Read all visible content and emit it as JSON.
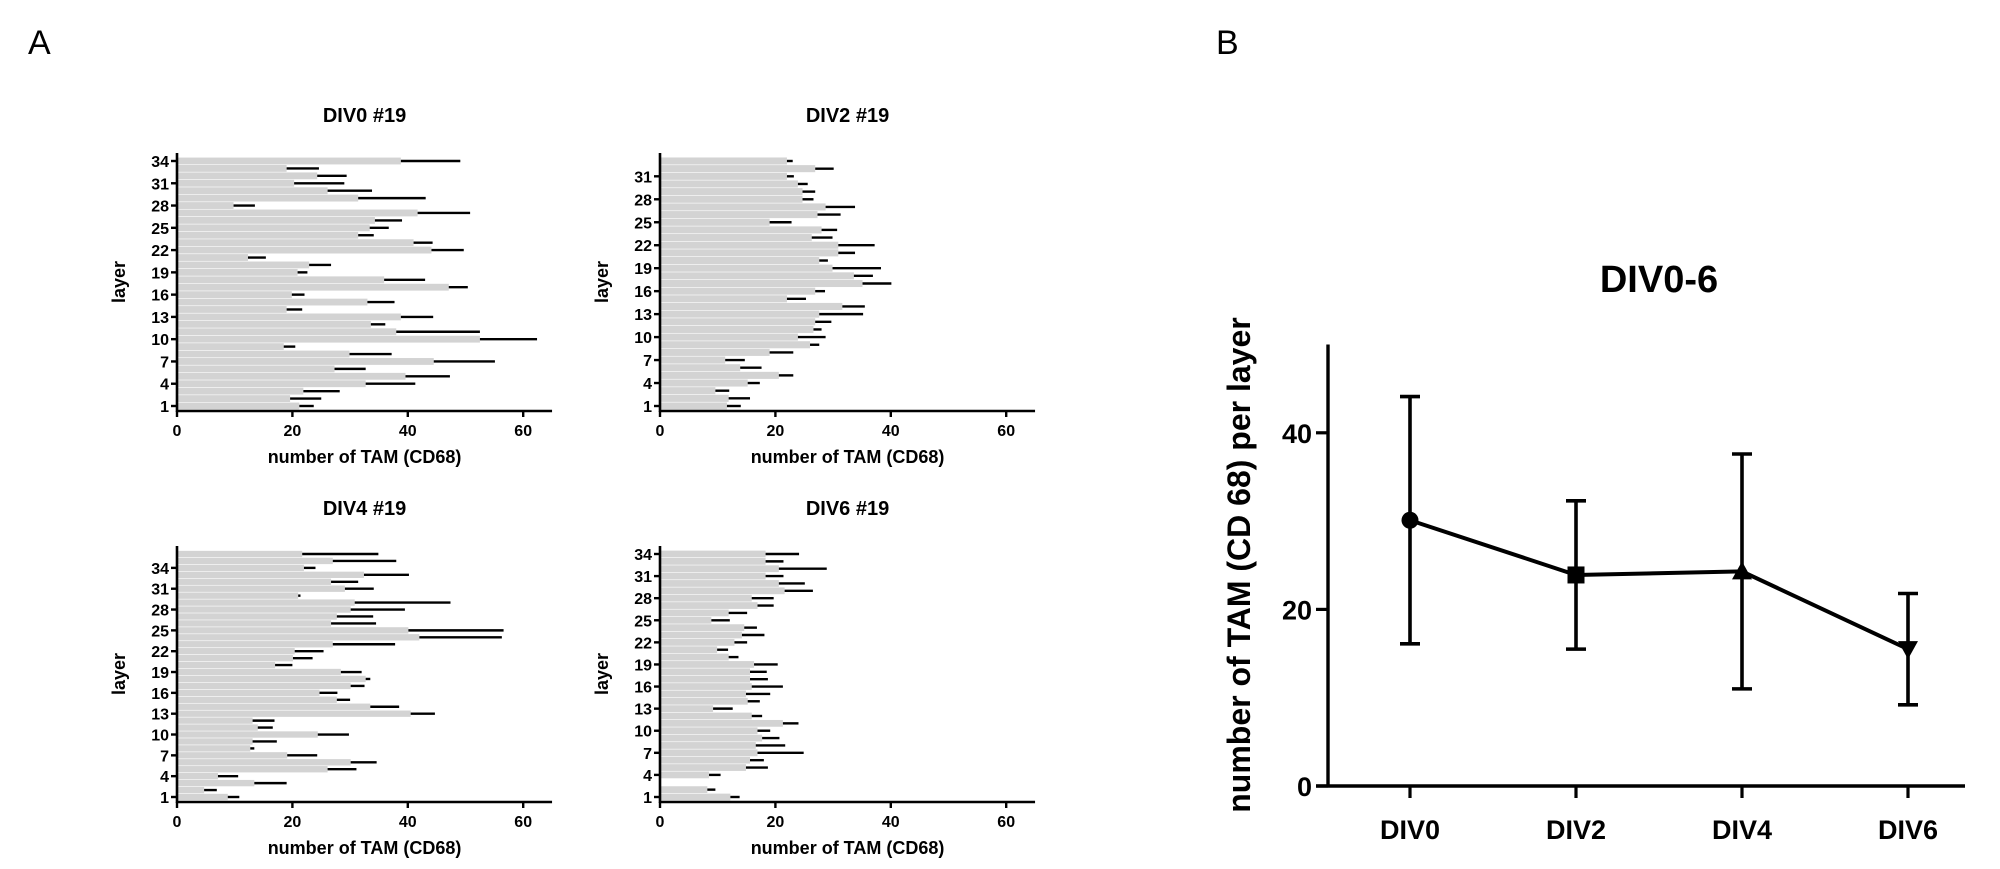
{
  "panel_labels": {
    "a": "A",
    "b": "B"
  },
  "colors": {
    "bar": "#d3d3d3",
    "ink": "#000000"
  },
  "chart_data": [
    {
      "type": "bar",
      "orientation": "horizontal",
      "title": "DIV0 #19",
      "xlabel": "number of TAM (CD68)",
      "ylabel": "layer",
      "xlim": [
        0,
        65
      ],
      "xticks": [
        0,
        20,
        40,
        60
      ],
      "yticks": [
        1,
        4,
        7,
        10,
        13,
        16,
        19,
        22,
        25,
        28,
        31,
        34
      ],
      "error_bars": "one-sided (right)",
      "layers": [
        1,
        2,
        3,
        4,
        5,
        6,
        7,
        8,
        9,
        10,
        11,
        12,
        13,
        14,
        15,
        16,
        17,
        18,
        19,
        20,
        21,
        22,
        23,
        24,
        25,
        26,
        27,
        28,
        29,
        30,
        31,
        32,
        33,
        34
      ],
      "mean": [
        21.2,
        19.6,
        21.9,
        32.7,
        39.6,
        27.3,
        44.5,
        29.9,
        18.5,
        52.5,
        38.0,
        33.6,
        38.8,
        19.0,
        33.0,
        19.9,
        47.1,
        35.9,
        20.9,
        22.9,
        12.3,
        44.1,
        41.0,
        31.4,
        33.4,
        34.3,
        41.7,
        9.8,
        31.4,
        26.1,
        20.3,
        24.3,
        19.0,
        38.8
      ],
      "sd": [
        2.5,
        5.4,
        6.3,
        8.6,
        7.7,
        5.4,
        10.6,
        7.3,
        2.0,
        9.9,
        14.5,
        2.5,
        5.6,
        2.7,
        4.7,
        2.2,
        3.3,
        7.1,
        1.7,
        3.8,
        3.1,
        5.6,
        3.3,
        2.7,
        3.3,
        4.7,
        9.1,
        3.7,
        11.7,
        7.7,
        8.7,
        5.1,
        5.6,
        10.3
      ]
    },
    {
      "type": "bar",
      "orientation": "horizontal",
      "title": "DIV2 #19",
      "xlabel": "number of TAM (CD68)",
      "ylabel": "layer",
      "xlim": [
        0,
        65
      ],
      "xticks": [
        0,
        20,
        40,
        60
      ],
      "yticks": [
        1,
        4,
        7,
        10,
        13,
        16,
        19,
        22,
        25,
        28,
        31
      ],
      "error_bars": "one-sided (right)",
      "layers": [
        1,
        2,
        3,
        4,
        5,
        6,
        7,
        8,
        9,
        10,
        11,
        12,
        13,
        14,
        15,
        16,
        17,
        18,
        19,
        20,
        21,
        22,
        23,
        24,
        25,
        26,
        27,
        28,
        29,
        30,
        31,
        32,
        33
      ],
      "mean": [
        11.6,
        11.9,
        9.6,
        15.2,
        20.6,
        13.9,
        11.3,
        19.0,
        26.0,
        23.9,
        26.6,
        26.9,
        27.6,
        31.6,
        22.0,
        26.9,
        35.1,
        33.6,
        29.9,
        27.6,
        30.9,
        30.9,
        26.3,
        28.0,
        19.0,
        27.3,
        28.7,
        24.7,
        24.7,
        23.9,
        22.0,
        26.9,
        22.0
      ],
      "sd": [
        2.4,
        3.7,
        2.4,
        2.1,
        2.5,
        3.7,
        3.4,
        4.1,
        1.6,
        4.8,
        1.4,
        2.8,
        7.6,
        3.9,
        3.3,
        1.7,
        5.0,
        3.3,
        8.4,
        1.5,
        2.9,
        6.3,
        3.6,
        2.7,
        3.8,
        4.0,
        5.1,
        1.9,
        2.2,
        1.7,
        1.2,
        3.2,
        1.0
      ]
    },
    {
      "type": "bar",
      "orientation": "horizontal",
      "title": "DIV4 #19",
      "xlabel": "number of TAM (CD68)",
      "ylabel": "layer",
      "xlim": [
        0,
        65
      ],
      "xticks": [
        0,
        20,
        40,
        60
      ],
      "yticks": [
        1,
        4,
        7,
        10,
        13,
        16,
        19,
        22,
        25,
        28,
        31,
        34
      ],
      "error_bars": "one-sided (right)",
      "layers": [
        1,
        2,
        3,
        4,
        5,
        6,
        7,
        8,
        9,
        10,
        11,
        12,
        13,
        14,
        15,
        16,
        17,
        18,
        19,
        20,
        21,
        22,
        23,
        24,
        25,
        26,
        27,
        28,
        29,
        30,
        31,
        32,
        33,
        34,
        35,
        36
      ],
      "mean": [
        8.8,
        4.7,
        13.4,
        7.1,
        26.1,
        30.1,
        19.1,
        12.7,
        13.1,
        24.4,
        14.0,
        13.1,
        40.5,
        33.5,
        27.7,
        24.7,
        30.1,
        32.7,
        28.4,
        17.0,
        20.1,
        20.4,
        27.0,
        42.0,
        40.1,
        26.7,
        27.7,
        30.1,
        30.8,
        21.0,
        29.1,
        26.7,
        32.4,
        22.0,
        27.0,
        21.7
      ],
      "sd": [
        2.0,
        2.2,
        5.6,
        3.5,
        5.0,
        4.5,
        5.2,
        0.7,
        4.2,
        5.4,
        2.6,
        3.8,
        4.2,
        5.0,
        2.3,
        3.1,
        2.4,
        0.8,
        3.6,
        3.0,
        3.4,
        5.0,
        10.8,
        14.3,
        16.5,
        7.8,
        6.3,
        9.4,
        16.6,
        0.4,
        5.0,
        4.7,
        7.8,
        2.0,
        11.0,
        13.2
      ]
    },
    {
      "type": "bar",
      "orientation": "horizontal",
      "title": "DIV6 #19",
      "xlabel": "number of TAM (CD68)",
      "ylabel": "layer",
      "xlim": [
        0,
        65
      ],
      "xticks": [
        0,
        20,
        40,
        60
      ],
      "yticks": [
        1,
        4,
        7,
        10,
        13,
        16,
        19,
        22,
        25,
        28,
        31,
        34
      ],
      "error_bars": "one-sided (right)",
      "layers": [
        1,
        2,
        3,
        4,
        5,
        6,
        7,
        8,
        9,
        10,
        11,
        12,
        13,
        14,
        15,
        16,
        17,
        18,
        19,
        20,
        21,
        22,
        23,
        24,
        25,
        26,
        27,
        28,
        29,
        30,
        31,
        32,
        33,
        34
      ],
      "mean": [
        12.2,
        8.2,
        0,
        8.5,
        14.9,
        15.6,
        16.9,
        16.6,
        17.7,
        16.9,
        21.3,
        15.9,
        9.2,
        15.2,
        14.9,
        15.9,
        15.6,
        15.6,
        16.3,
        11.9,
        9.9,
        12.9,
        14.2,
        14.6,
        8.9,
        11.9,
        16.9,
        15.9,
        21.6,
        20.6,
        18.3,
        20.6,
        18.3,
        18.3
      ],
      "sd": [
        1.6,
        1.4,
        0,
        2.0,
        3.8,
        2.4,
        8.0,
        5.1,
        3.0,
        2.2,
        2.7,
        1.8,
        3.4,
        2.1,
        4.2,
        5.4,
        3.1,
        2.9,
        4.1,
        1.7,
        1.9,
        2.2,
        3.9,
        2.2,
        3.2,
        3.2,
        2.8,
        3.8,
        4.9,
        4.5,
        3.1,
        8.3,
        3.1,
        5.8
      ]
    },
    {
      "type": "line",
      "title": "DIV0-6",
      "xlabel": "",
      "ylabel": "number of TAM (CD 68) per layer",
      "ylim": [
        0,
        50
      ],
      "yticks": [
        0,
        20,
        40
      ],
      "categories": [
        "DIV0",
        "DIV2",
        "DIV4",
        "DIV6"
      ],
      "values": [
        30.1,
        23.9,
        24.3,
        15.5
      ],
      "error": [
        14.0,
        8.4,
        13.3,
        6.3
      ],
      "markers": [
        "circle",
        "square",
        "triangle-up",
        "triangle-down"
      ]
    }
  ]
}
